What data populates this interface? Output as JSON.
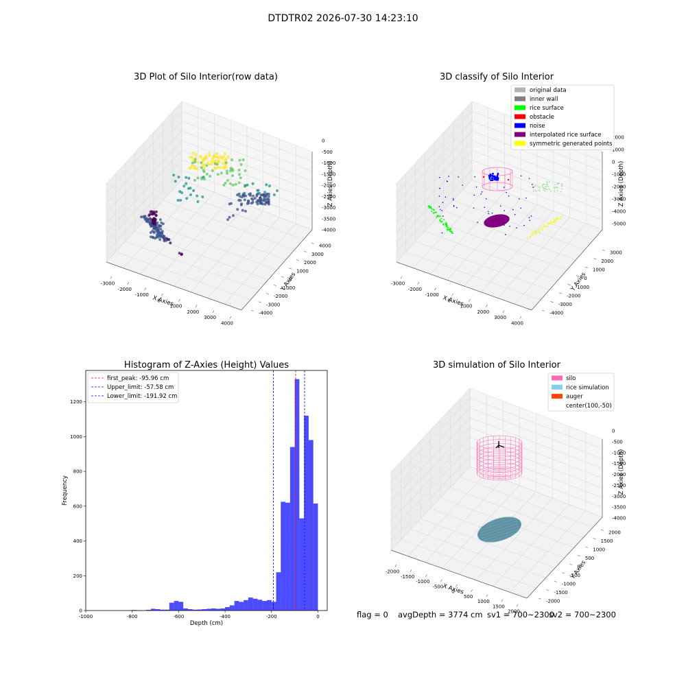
{
  "figure": {
    "suptitle": "DTDTR02 2026-07-30 14:23:10",
    "status": {
      "flag": "flag = 0",
      "avg_depth": "avgDepth = 3774 cm",
      "sv1": "sv1 = 700~2300",
      "sv2": "sv2 = 700~2300"
    }
  },
  "panel_raw": {
    "title": "3D Plot of Silo Interior(row data)",
    "xlabel": "X Axies",
    "ylabel": "Y Axies",
    "zlabel": "Z Axies (Depth)",
    "xticks": [
      "-3000",
      "-2000",
      "-1000",
      "0",
      "1000",
      "2000",
      "3000",
      "4000"
    ],
    "yticks": [
      "-4000",
      "-3000",
      "-2000",
      "-1000",
      "0",
      "1000",
      "2000",
      "3000",
      "4000"
    ],
    "zticks": [
      "-4000",
      "-3500",
      "-3000",
      "-2500",
      "-2000",
      "-1500",
      "-1000",
      "-500",
      "0"
    ],
    "colormap": [
      "#440154",
      "#3b528b",
      "#21918c",
      "#5ec962",
      "#fde725"
    ]
  },
  "panel_classify": {
    "title": "3D classify of Silo Interior",
    "xlabel": "X Axies",
    "ylabel": "Y Axies",
    "zlabel": "Z Axies (Depth)",
    "xticks": [
      "-3000",
      "-2000",
      "-1000",
      "0",
      "1000",
      "2000",
      "3000",
      "4000"
    ],
    "yticks": [
      "-4000",
      "-3000",
      "-2000",
      "-1000",
      "0",
      "1000",
      "2000",
      "3000"
    ],
    "zticks": [
      "-5000",
      "-4000",
      "-3000",
      "-2000",
      "-1000",
      "0",
      "1000",
      "2000"
    ],
    "legend": [
      {
        "label": "original data",
        "color": "#b3b3b3"
      },
      {
        "label": "inner wall",
        "color": "#808080"
      },
      {
        "label": "rice surface",
        "color": "#00ff00"
      },
      {
        "label": "obstacle",
        "color": "#ff0000"
      },
      {
        "label": "noise",
        "color": "#0000ff"
      },
      {
        "label": "interpolated rice surface",
        "color": "#800080"
      },
      {
        "label": "symmetric generated points",
        "color": "#ffff00"
      }
    ]
  },
  "panel_sim": {
    "title": "3D simulation of Silo Interior",
    "xlabel": "X Axies",
    "ylabel": "Y Axies",
    "zlabel": "Z Axies (Depth)",
    "xticks": [
      "-2000",
      "-1500",
      "-1000",
      "-500",
      "0",
      "500",
      "1000",
      "1500",
      "2000"
    ],
    "yticks": [
      "-2000",
      "-1500",
      "-1000",
      "-500",
      "0",
      "500",
      "1000",
      "1500",
      "2000"
    ],
    "zticks": [
      "-4000",
      "-3500",
      "-3000",
      "-2500",
      "-2000",
      "-1500",
      "-1000",
      "-500",
      "0"
    ],
    "legend": [
      {
        "label": "silo",
        "color": "#ff69b4"
      },
      {
        "label": "rice simulation",
        "color": "#87ceeb"
      },
      {
        "label": "auger",
        "color": "#ff4500"
      },
      {
        "label": "center(100,-50)",
        "color": ""
      }
    ]
  },
  "chart_data": [
    {
      "type": "bar",
      "title": "Histogram of Z-Axies (Height) Values",
      "xlabel": "Depth (cm)",
      "ylabel": "Frequency",
      "xlim": [
        -1000,
        40
      ],
      "ylim": [
        0,
        1380
      ],
      "xticks": [
        -1000,
        -800,
        -600,
        -400,
        -200,
        0
      ],
      "yticks": [
        0,
        200,
        400,
        600,
        800,
        1000,
        1200
      ],
      "bar_color": "#0000ff",
      "bin_width": 20,
      "bins_start": [
        -820,
        -800,
        -780,
        -760,
        -740,
        -720,
        -700,
        -680,
        -660,
        -640,
        -620,
        -600,
        -580,
        -560,
        -540,
        -520,
        -500,
        -480,
        -460,
        -440,
        -420,
        -400,
        -380,
        -360,
        -340,
        -320,
        -300,
        -280,
        -260,
        -240,
        -220,
        -200,
        -180,
        -160,
        -140,
        -120,
        -100,
        -80,
        -60,
        -40,
        -20
      ],
      "values": [
        2,
        3,
        2,
        1,
        4,
        10,
        8,
        5,
        5,
        45,
        55,
        50,
        12,
        8,
        5,
        6,
        8,
        10,
        12,
        10,
        12,
        20,
        30,
        55,
        50,
        60,
        75,
        68,
        62,
        55,
        60,
        50,
        220,
        625,
        620,
        940,
        1330,
        530,
        1120,
        980,
        615
      ],
      "vlines": [
        {
          "x": -95.96,
          "color": "#ff0000",
          "label": "first_peak: -95.96 cm"
        },
        {
          "x": -57.58,
          "color": "#0000ff",
          "label": "Upper_limit: -57.58 cm"
        },
        {
          "x": -191.92,
          "color": "#0000ff",
          "label": "Lower_limit: -191.92 cm"
        }
      ],
      "legend_position": "upper-left"
    }
  ]
}
